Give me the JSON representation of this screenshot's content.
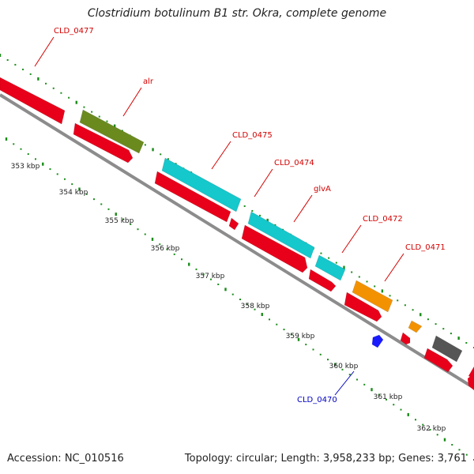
{
  "title": "Clostridium botulinum B1 str. Okra, complete genome",
  "footer": {
    "accession": "Accession: NC_010516",
    "summary": "Topology: circular; Length: 3,958,233 bp; Genes: 3,761"
  },
  "colors": {
    "backbone": "#8c8c8c",
    "label_red": "#d40000",
    "label_blue": "#0000c0",
    "dots": "#1a8c1a"
  },
  "ticks": [
    {
      "label": "353 kbp"
    },
    {
      "label": "354 kbp"
    },
    {
      "label": "355 kbp"
    },
    {
      "label": "356 kbp"
    },
    {
      "label": "357 kbp"
    },
    {
      "label": "358 kbp"
    },
    {
      "label": "359 kbp"
    },
    {
      "label": "360 kbp"
    },
    {
      "label": "361 kbp"
    },
    {
      "label": "362 kbp"
    }
  ],
  "features": [
    {
      "id": "gene-a",
      "color": "#e8001a"
    },
    {
      "id": "gene-alr",
      "color": "#e8001a"
    },
    {
      "id": "cds-alr",
      "color": "#6b8a1e"
    },
    {
      "id": "gene-0475",
      "color": "#e8001a"
    },
    {
      "id": "cds-0475",
      "color": "#14c8cc"
    },
    {
      "id": "gene-0474",
      "color": "#e8001a"
    },
    {
      "id": "cds-0474",
      "color": "#14c8cc"
    },
    {
      "id": "gene-glvA",
      "color": "#e8001a"
    },
    {
      "id": "cds-glvA",
      "color": "#14c8cc"
    },
    {
      "id": "gene-0472",
      "color": "#e8001a"
    },
    {
      "id": "cds-0472",
      "color": "#f39200"
    },
    {
      "id": "gene-0471",
      "color": "#e8001a"
    },
    {
      "id": "cds-0471",
      "color": "#f39200"
    },
    {
      "id": "gene-0470",
      "color": "#1a1aff"
    },
    {
      "id": "gene-x1",
      "color": "#e8001a"
    },
    {
      "id": "cds-x1",
      "color": "#555555"
    },
    {
      "id": "gene-x2",
      "color": "#e8001a"
    }
  ],
  "labels": [
    {
      "text": "CLD_0477"
    },
    {
      "text": "alr"
    },
    {
      "text": "CLD_0475"
    },
    {
      "text": "CLD_0474"
    },
    {
      "text": "glvA"
    },
    {
      "text": "CLD_0472"
    },
    {
      "text": "CLD_0471"
    },
    {
      "text": "CLD_0470"
    }
  ]
}
